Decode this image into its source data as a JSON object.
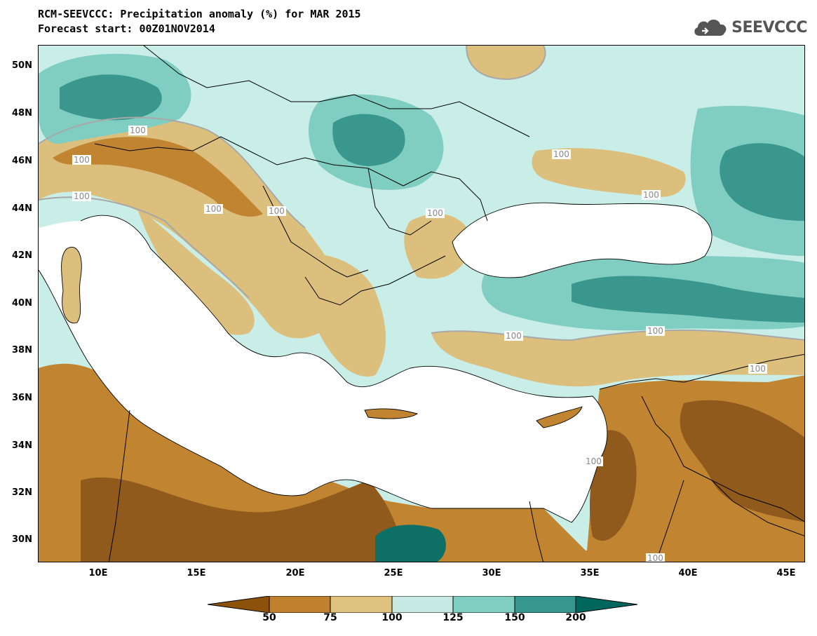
{
  "header": {
    "title": "RCM-SEEVCCC: Precipitation anomaly (%) for MAR 2015",
    "subtitle": "Forecast start: 00Z01NOV2014"
  },
  "logo": {
    "text": "SEEVCCC",
    "icon": "cloud-icon"
  },
  "map": {
    "latitude_labels": [
      "50N",
      "48N",
      "46N",
      "44N",
      "42N",
      "40N",
      "38N",
      "36N",
      "34N",
      "32N",
      "30N"
    ],
    "longitude_labels": [
      "10E",
      "15E",
      "20E",
      "25E",
      "30E",
      "35E",
      "40E",
      "45E"
    ],
    "contour_labels": [
      "100",
      "100",
      "100",
      "100",
      "100",
      "100",
      "100",
      "100",
      "100",
      "100",
      "100",
      "100",
      "100"
    ],
    "land_mask_color": "#ffffff"
  },
  "colorbar": {
    "labels": [
      "50",
      "75",
      "100",
      "125",
      "150",
      "200"
    ],
    "colors": [
      "#8c510a",
      "#bf812d",
      "#dfc27d",
      "#c7eae5",
      "#80cdc1",
      "#35978f",
      "#01665e"
    ]
  }
}
